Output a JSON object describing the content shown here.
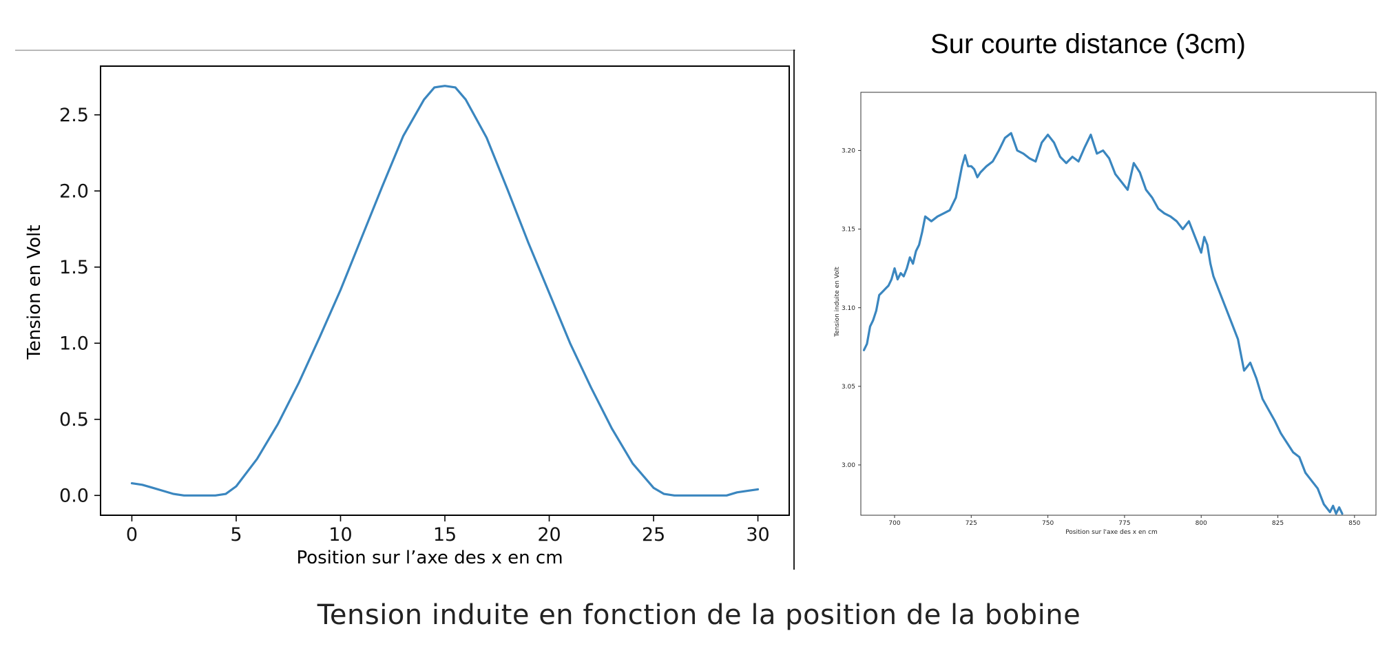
{
  "caption": "Tension induite en fonction de la position de la bobine",
  "colors": {
    "line": "#3a86bf",
    "axes": "#000000",
    "separator": "#b8b8b8"
  },
  "chart_data": [
    {
      "type": "line",
      "title": "",
      "xlabel": "Position sur l’axe des x en cm",
      "ylabel": "Tension en Volt",
      "xlim": [
        -1.5,
        31.5
      ],
      "ylim": [
        -0.13,
        2.82
      ],
      "xticks": [
        0,
        5,
        10,
        15,
        20,
        25,
        30
      ],
      "xtick_labels": [
        "0",
        "5",
        "10",
        "15",
        "20",
        "25",
        "30"
      ],
      "yticks": [
        0.0,
        0.5,
        1.0,
        1.5,
        2.0,
        2.5
      ],
      "ytick_labels": [
        "0.0",
        "0.5",
        "1.0",
        "1.5",
        "2.0",
        "2.5"
      ],
      "grid": false,
      "series": [
        {
          "x": [
            0,
            0.5,
            1,
            1.5,
            2,
            2.5,
            3,
            3.5,
            4,
            4.5,
            5,
            6,
            7,
            8,
            9,
            10,
            11,
            12,
            13,
            14,
            14.5,
            15,
            15.5,
            16,
            17,
            18,
            19,
            20,
            21,
            22,
            23,
            24,
            25,
            25.5,
            26,
            26.5,
            27,
            28,
            28.5,
            29,
            29.5,
            30
          ],
          "y": [
            0.08,
            0.07,
            0.05,
            0.03,
            0.01,
            0.0,
            0.0,
            0.0,
            0.0,
            0.01,
            0.06,
            0.24,
            0.47,
            0.74,
            1.04,
            1.35,
            1.69,
            2.03,
            2.36,
            2.6,
            2.68,
            2.69,
            2.68,
            2.6,
            2.35,
            2.01,
            1.66,
            1.33,
            1.0,
            0.71,
            0.44,
            0.21,
            0.05,
            0.01,
            0.0,
            0.0,
            0.0,
            0.0,
            0.0,
            0.02,
            0.03,
            0.04
          ]
        }
      ]
    },
    {
      "type": "line",
      "title": "Sur courte distance (3cm)",
      "xlabel": "Position sur l'axe des x en cm",
      "ylabel": "Tension induite en Volt",
      "xlim": [
        689,
        857
      ],
      "ylim": [
        2.968,
        3.237
      ],
      "xticks": [
        700,
        725,
        750,
        775,
        800,
        825,
        850
      ],
      "xtick_labels": [
        "700",
        "725",
        "750",
        "775",
        "800",
        "825",
        "850"
      ],
      "yticks": [
        3.0,
        3.05,
        3.1,
        3.15,
        3.2
      ],
      "ytick_labels": [
        "3.00",
        "3.05",
        "3.10",
        "3.15",
        "3.20"
      ],
      "grid": false,
      "series": [
        {
          "x": [
            690,
            691,
            692,
            693,
            694,
            695,
            696,
            697,
            698,
            699,
            700,
            701,
            702,
            703,
            704,
            705,
            706,
            707,
            708,
            709,
            710,
            712,
            714,
            716,
            718,
            720,
            721,
            722,
            723,
            724,
            725,
            726,
            727,
            728,
            729,
            730,
            732,
            734,
            736,
            738,
            740,
            742,
            744,
            746,
            748,
            750,
            752,
            754,
            756,
            758,
            760,
            762,
            764,
            766,
            768,
            770,
            772,
            774,
            776,
            778,
            780,
            782,
            784,
            786,
            788,
            790,
            792,
            794,
            796,
            798,
            799,
            800,
            801,
            802,
            803,
            804,
            806,
            808,
            810,
            812,
            814,
            816,
            818,
            820,
            822,
            824,
            826,
            828,
            830,
            832,
            834,
            836,
            838,
            840,
            842,
            843,
            844,
            845,
            846
          ],
          "y": [
            3.073,
            3.077,
            3.088,
            3.092,
            3.098,
            3.108,
            3.11,
            3.112,
            3.114,
            3.118,
            3.125,
            3.118,
            3.122,
            3.12,
            3.125,
            3.132,
            3.128,
            3.136,
            3.14,
            3.148,
            3.158,
            3.155,
            3.158,
            3.16,
            3.162,
            3.17,
            3.18,
            3.19,
            3.197,
            3.19,
            3.19,
            3.188,
            3.183,
            3.186,
            3.188,
            3.19,
            3.193,
            3.2,
            3.208,
            3.211,
            3.2,
            3.198,
            3.195,
            3.193,
            3.205,
            3.21,
            3.205,
            3.196,
            3.192,
            3.196,
            3.193,
            3.202,
            3.21,
            3.198,
            3.2,
            3.195,
            3.185,
            3.18,
            3.175,
            3.192,
            3.186,
            3.175,
            3.17,
            3.163,
            3.16,
            3.158,
            3.155,
            3.15,
            3.155,
            3.145,
            3.14,
            3.135,
            3.145,
            3.14,
            3.128,
            3.12,
            3.11,
            3.1,
            3.09,
            3.08,
            3.06,
            3.065,
            3.055,
            3.042,
            3.035,
            3.028,
            3.02,
            3.014,
            3.008,
            3.005,
            2.995,
            2.99,
            2.985,
            2.975,
            2.97,
            2.974,
            2.969,
            2.973,
            2.969
          ]
        }
      ]
    }
  ]
}
